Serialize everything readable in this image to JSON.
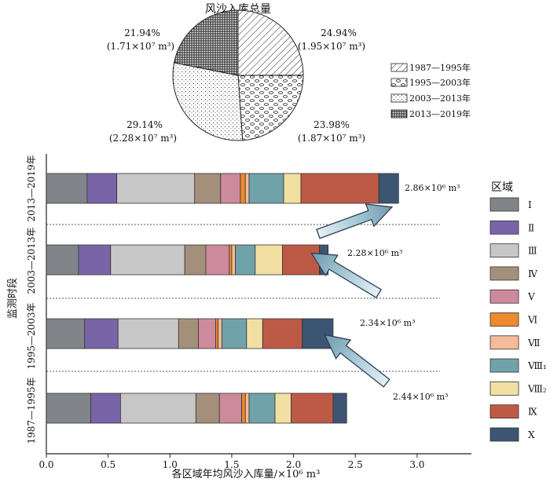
{
  "chart_data": [
    {
      "type": "pie",
      "title": "风沙入库总量",
      "slices": [
        {
          "period": "1987—1995年",
          "percent_label": "24.94%",
          "amount_label": "(1.95×10⁷ m³)",
          "value": 1.95,
          "pattern": "diag"
        },
        {
          "period": "1995—2003年",
          "percent_label": "23.98%",
          "amount_label": "(1.87×10⁷ m³)",
          "value": 1.87,
          "pattern": "ellipse"
        },
        {
          "period": "2003—2013年",
          "percent_label": "29.14%",
          "amount_label": "(2.28×10⁷ m³)",
          "value": 2.28,
          "pattern": "dots"
        },
        {
          "period": "2013—2019年",
          "percent_label": "21.94%",
          "amount_label": "(1.71×10⁷ m³)",
          "value": 1.71,
          "pattern": "cross"
        }
      ],
      "legend": [
        "1987—1995年",
        "1995—2003年",
        "2003—2013年",
        "2013—2019年"
      ]
    },
    {
      "type": "bar",
      "orientation": "horizontal",
      "stacked": true,
      "xlabel": "各区域年均风沙入库量/×10⁶ m³",
      "ylabel": "监测时段",
      "xlim": [
        0,
        3.4
      ],
      "xticks": [
        "0.0",
        "0.5",
        "1.0",
        "1.5",
        "2.0",
        "2.5",
        "3.0"
      ],
      "categories": [
        "2013—2019年",
        "2003—2013年",
        "1995—2003年",
        "1987—1995年"
      ],
      "totals": [
        2.86,
        2.28,
        2.34,
        2.44
      ],
      "total_labels": [
        "2.86×10⁶ m³",
        "2.28×10⁶ m³",
        "2.34×10⁶ m³",
        "2.44×10⁶ m³"
      ],
      "legend_title": "区域",
      "series": [
        {
          "name": "Ⅰ",
          "color": "#818589",
          "values": [
            0.33,
            0.26,
            0.31,
            0.36
          ]
        },
        {
          "name": "Ⅱ",
          "color": "#7a64a8",
          "values": [
            0.24,
            0.26,
            0.27,
            0.24
          ]
        },
        {
          "name": "Ⅲ",
          "color": "#c7c7c7",
          "values": [
            0.63,
            0.6,
            0.49,
            0.61
          ]
        },
        {
          "name": "Ⅳ",
          "color": "#a4907a",
          "values": [
            0.21,
            0.17,
            0.16,
            0.19
          ]
        },
        {
          "name": "Ⅴ",
          "color": "#cd8a9c",
          "values": [
            0.16,
            0.19,
            0.14,
            0.18
          ]
        },
        {
          "name": "Ⅵ",
          "color": "#ed8a2d",
          "values": [
            0.04,
            0.02,
            0.02,
            0.03
          ]
        },
        {
          "name": "Ⅶ",
          "color": "#f5bb98",
          "values": [
            0.03,
            0.03,
            0.03,
            0.03
          ]
        },
        {
          "name": "Ⅷ₁",
          "color": "#6fa3a9",
          "values": [
            0.28,
            0.16,
            0.2,
            0.21
          ]
        },
        {
          "name": "Ⅷ₂",
          "color": "#f1e0a1",
          "values": [
            0.14,
            0.22,
            0.13,
            0.13
          ]
        },
        {
          "name": "Ⅸ",
          "color": "#bd5a46",
          "values": [
            0.63,
            0.3,
            0.32,
            0.34
          ]
        },
        {
          "name": "Ⅹ",
          "color": "#3c5572",
          "values": [
            0.16,
            0.07,
            0.25,
            0.11
          ]
        }
      ]
    }
  ]
}
